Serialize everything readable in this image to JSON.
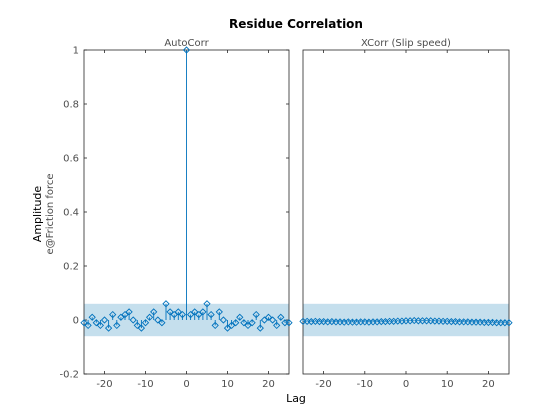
{
  "chart_data": {
    "type": "scatter",
    "title": "Residue Correlation",
    "xlabel": "Lag",
    "ylabel": "Amplitude",
    "ylabel_secondary": "e@Friction force",
    "colors": {
      "marker": "#0072bd",
      "confidence_band": "#9ecae1",
      "axes": "#262626",
      "tick_text": "#4d4d4d"
    },
    "panels": [
      {
        "title": "AutoCorr",
        "xlim": [
          -25,
          25
        ],
        "ylim": [
          -0.2,
          1
        ],
        "xticks": [
          -20,
          -10,
          0,
          10,
          20
        ],
        "yticks": [
          -0.2,
          0,
          0.2,
          0.4,
          0.6,
          0.8,
          1
        ],
        "confidence_band": [
          -0.06,
          0.06
        ],
        "series": [
          {
            "x": [
              -25,
              -24,
              -23,
              -22,
              -21,
              -20,
              -19,
              -18,
              -17,
              -16,
              -15,
              -14,
              -13,
              -12,
              -11,
              -10,
              -9,
              -8,
              -7,
              -6,
              -5,
              -4,
              -3,
              -2,
              -1,
              0,
              1,
              2,
              3,
              4,
              5,
              6,
              7,
              8,
              9,
              10,
              11,
              12,
              13,
              14,
              15,
              16,
              17,
              18,
              19,
              20,
              21,
              22,
              23,
              24,
              25
            ],
            "values": [
              -0.01,
              -0.02,
              0.01,
              -0.01,
              -0.02,
              0.0,
              -0.03,
              0.02,
              -0.02,
              0.01,
              0.02,
              0.03,
              0.0,
              -0.02,
              -0.03,
              -0.01,
              0.01,
              0.03,
              0.0,
              -0.01,
              0.06,
              0.03,
              0.02,
              0.03,
              0.02,
              1.0,
              0.02,
              0.03,
              0.02,
              0.03,
              0.06,
              0.02,
              -0.02,
              0.03,
              0.0,
              -0.03,
              -0.02,
              -0.01,
              0.01,
              -0.01,
              -0.02,
              -0.01,
              0.02,
              -0.03,
              0.0,
              0.01,
              0.0,
              -0.02,
              0.01,
              -0.01,
              -0.01
            ]
          }
        ]
      },
      {
        "title": "XCorr (Slip speed)",
        "xlim": [
          -25,
          25
        ],
        "ylim": [
          -0.2,
          1
        ],
        "xticks": [
          -20,
          -10,
          0,
          10,
          20
        ],
        "yticks": [],
        "confidence_band": [
          -0.06,
          0.06
        ],
        "series": [
          {
            "x": [
              -25,
              -24,
              -23,
              -22,
              -21,
              -20,
              -19,
              -18,
              -17,
              -16,
              -15,
              -14,
              -13,
              -12,
              -11,
              -10,
              -9,
              -8,
              -7,
              -6,
              -5,
              -4,
              -3,
              -2,
              -1,
              0,
              1,
              2,
              3,
              4,
              5,
              6,
              7,
              8,
              9,
              10,
              11,
              12,
              13,
              14,
              15,
              16,
              17,
              18,
              19,
              20,
              21,
              22,
              23,
              24,
              25
            ],
            "values": [
              -0.005,
              -0.005,
              -0.006,
              -0.005,
              -0.006,
              -0.006,
              -0.007,
              -0.006,
              -0.007,
              -0.007,
              -0.008,
              -0.007,
              -0.008,
              -0.008,
              -0.007,
              -0.007,
              -0.008,
              -0.007,
              -0.007,
              -0.006,
              -0.006,
              -0.005,
              -0.005,
              -0.004,
              -0.004,
              -0.003,
              -0.003,
              -0.002,
              -0.003,
              -0.003,
              -0.003,
              -0.003,
              -0.004,
              -0.004,
              -0.005,
              -0.005,
              -0.006,
              -0.006,
              -0.007,
              -0.007,
              -0.007,
              -0.008,
              -0.008,
              -0.008,
              -0.009,
              -0.009,
              -0.009,
              -0.01,
              -0.01,
              -0.01,
              -0.01
            ]
          }
        ]
      }
    ]
  }
}
